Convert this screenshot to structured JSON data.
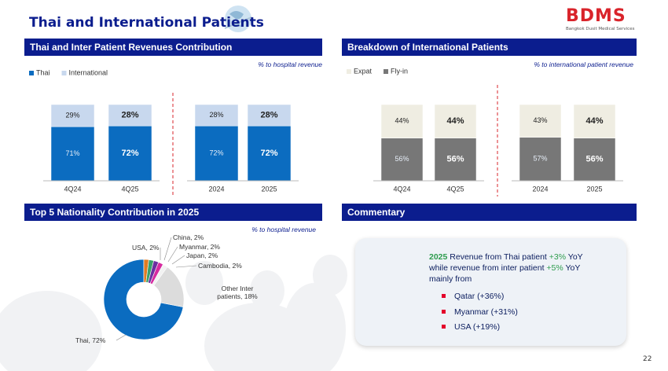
{
  "header": {
    "title": "Thai and International Patients",
    "logo": "BDMS",
    "logo_subtitle": "Bangkok Dusit Medical Services",
    "page_number": "22"
  },
  "chart_data": [
    {
      "type": "stacked_bar",
      "title": "Thai and Inter Patient Revenues Contribution",
      "note": "% to hospital revenue",
      "categories": [
        "4Q24",
        "4Q25",
        "2024",
        "2025"
      ],
      "series": [
        {
          "name": "Thai",
          "color": "#0b6cc0",
          "values": [
            71,
            72,
            72,
            72
          ],
          "value_labels": [
            "71%",
            "72%",
            "72%",
            "72%"
          ]
        },
        {
          "name": "International",
          "color": "#c8d8ee",
          "values": [
            29,
            28,
            28,
            28
          ],
          "value_labels": [
            "29%",
            "28%",
            "28%",
            "28%"
          ]
        }
      ],
      "ylim": [
        0,
        100
      ]
    },
    {
      "type": "stacked_bar",
      "title": "Breakdown of International Patients",
      "note": "% to international patient revenue",
      "categories": [
        "4Q24",
        "4Q25",
        "2024",
        "2025"
      ],
      "series": [
        {
          "name": "Expat",
          "color": "#efede2",
          "values": [
            44,
            44,
            43,
            44
          ],
          "value_labels": [
            "44%",
            "44%",
            "43%",
            "44%"
          ]
        },
        {
          "name": "Fly-in",
          "color": "#777777",
          "values": [
            56,
            56,
            57,
            56
          ],
          "value_labels": [
            "56%",
            "56%",
            "57%",
            "56%"
          ]
        }
      ],
      "ylim": [
        0,
        100
      ]
    },
    {
      "type": "donut",
      "title": "Top 5 Nationality Contribution in 2025",
      "note": "% to hospital revenue",
      "values": [
        72,
        2,
        2,
        2,
        2,
        2,
        18
      ],
      "value_labels": [
        "Thai, 72%",
        "USA, 2%",
        "China, 2%",
        "Myanmar, 2%",
        "Japan, 2%",
        "Cambodia, 2%",
        "Other Inter patients, 18%"
      ],
      "colors": [
        "#0b6cc0",
        "#e07b22",
        "#3aa06a",
        "#6b2fa0",
        "#d62aa0",
        "#f2f2f2",
        "#dcdcdc"
      ]
    }
  ],
  "commentary": {
    "title": "Commentary",
    "segments": [
      {
        "text": "2025",
        "style": "year"
      },
      {
        "text": " Revenue from Thai patient ",
        "style": "plain"
      },
      {
        "text": "+3%",
        "style": "up"
      },
      {
        "text": " YoY while revenue from inter patient ",
        "style": "plain"
      },
      {
        "text": "+5%",
        "style": "up"
      },
      {
        "text": " YoY mainly from",
        "style": "plain"
      }
    ],
    "bullets": [
      "Qatar (+36%)",
      "Myanmar (+31%)",
      "USA (+19%)"
    ]
  }
}
